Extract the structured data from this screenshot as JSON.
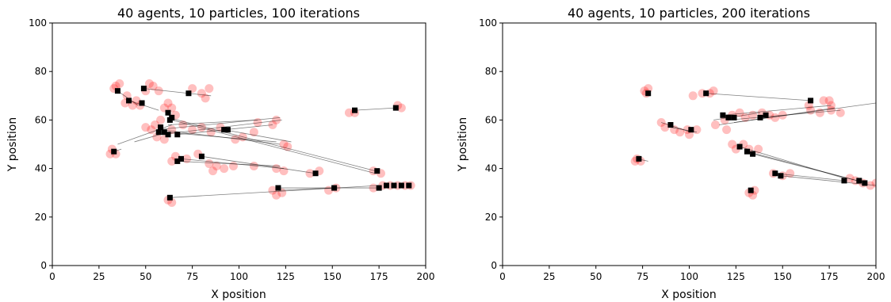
{
  "chart_data": [
    {
      "type": "scatter",
      "title": "40 agents, 10 particles, 100 iterations",
      "xlabel": "X position",
      "ylabel": "Y position",
      "xlim": [
        0,
        200
      ],
      "ylim": [
        0,
        100
      ],
      "xticks": [
        "0",
        "25",
        "50",
        "75",
        "100",
        "125",
        "150",
        "175",
        "200"
      ],
      "yticks": [
        "0",
        "20",
        "40",
        "60",
        "80",
        "100"
      ],
      "grid": false,
      "series": [
        {
          "marker": "square",
          "color": "#000000",
          "points": [
            [
              35,
              72
            ],
            [
              41,
              68
            ],
            [
              48,
              67
            ],
            [
              49,
              73
            ],
            [
              62,
              63
            ],
            [
              64,
              61
            ],
            [
              63,
              60
            ],
            [
              58,
              57
            ],
            [
              57,
              55
            ],
            [
              60,
              55
            ],
            [
              62,
              54
            ],
            [
              67,
              54
            ],
            [
              73,
              71
            ],
            [
              92,
              56
            ],
            [
              94,
              56
            ],
            [
              33,
              47
            ],
            [
              69,
              44
            ],
            [
              67,
              43
            ],
            [
              80,
              45
            ],
            [
              141,
              38
            ],
            [
              174,
              39
            ],
            [
              121,
              32
            ],
            [
              151,
              32
            ],
            [
              175,
              32
            ],
            [
              179,
              33
            ],
            [
              183,
              33
            ],
            [
              187,
              33
            ],
            [
              191,
              33
            ],
            [
              162,
              64
            ],
            [
              184,
              65
            ],
            [
              63,
              28
            ]
          ]
        },
        {
          "marker": "circle",
          "color": "#ff0000",
          "alpha": 0.25,
          "points": [
            [
              34,
              74
            ],
            [
              36,
              75
            ],
            [
              33,
              73
            ],
            [
              40,
              70
            ],
            [
              43,
              66
            ],
            [
              45,
              68
            ],
            [
              39,
              67
            ],
            [
              47,
              66
            ],
            [
              50,
              72
            ],
            [
              52,
              75
            ],
            [
              54,
              74
            ],
            [
              57,
              72
            ],
            [
              60,
              65
            ],
            [
              62,
              67
            ],
            [
              64,
              65
            ],
            [
              66,
              62
            ],
            [
              58,
              60
            ],
            [
              55,
              58
            ],
            [
              53,
              56
            ],
            [
              50,
              57
            ],
            [
              56,
              53
            ],
            [
              60,
              52
            ],
            [
              64,
              56
            ],
            [
              70,
              58
            ],
            [
              75,
              56
            ],
            [
              80,
              57
            ],
            [
              85,
              55
            ],
            [
              90,
              57
            ],
            [
              75,
              73
            ],
            [
              80,
              71
            ],
            [
              84,
              73
            ],
            [
              82,
              69
            ],
            [
              32,
              48
            ],
            [
              34,
              46
            ],
            [
              31,
              46
            ],
            [
              66,
              45
            ],
            [
              72,
              44
            ],
            [
              64,
              43
            ],
            [
              78,
              46
            ],
            [
              84,
              42
            ],
            [
              88,
              41
            ],
            [
              92,
              40
            ],
            [
              86,
              39
            ],
            [
              97,
              41
            ],
            [
              108,
              41
            ],
            [
              120,
              40
            ],
            [
              124,
              39
            ],
            [
              138,
              38
            ],
            [
              143,
              39
            ],
            [
              172,
              39
            ],
            [
              176,
              38
            ],
            [
              118,
              31
            ],
            [
              120,
              29
            ],
            [
              123,
              30
            ],
            [
              148,
              31
            ],
            [
              152,
              32
            ],
            [
              172,
              32
            ],
            [
              177,
              33
            ],
            [
              181,
              33
            ],
            [
              185,
              33
            ],
            [
              189,
              33
            ],
            [
              192,
              33
            ],
            [
              159,
              63
            ],
            [
              162,
              63
            ],
            [
              185,
              66
            ],
            [
              187,
              65
            ],
            [
              62,
              27
            ],
            [
              64,
              26
            ],
            [
              120,
              60
            ],
            [
              118,
              58
            ],
            [
              124,
              50
            ],
            [
              126,
              49
            ],
            [
              110,
              59
            ],
            [
              108,
              55
            ],
            [
              102,
              53
            ],
            [
              98,
              52
            ]
          ]
        },
        {
          "type": "line",
          "color": "#000000",
          "alpha": 0.5,
          "segments": [
            [
              [
                62,
                61
              ],
              [
                173,
                39
              ]
            ],
            [
              [
                64,
                60
              ],
              [
                173,
                38
              ]
            ],
            [
              [
                58,
                56
              ],
              [
                122,
                50
              ]
            ],
            [
              [
                60,
                55
              ],
              [
                120,
                51
              ]
            ],
            [
              [
                62,
                58
              ],
              [
                110,
                60
              ]
            ],
            [
              [
                56,
                56
              ],
              [
                122,
                61
              ]
            ],
            [
              [
                58,
                54
              ],
              [
                123,
                60
              ]
            ],
            [
              [
                67,
                54
              ],
              [
                118,
                58
              ]
            ],
            [
              [
                69,
                44
              ],
              [
                124,
                40
              ]
            ],
            [
              [
                67,
                43
              ],
              [
                122,
                41
              ]
            ],
            [
              [
                80,
                45
              ],
              [
                141,
                38
              ]
            ],
            [
              [
                121,
                32
              ],
              [
                175,
                32
              ]
            ],
            [
              [
                63,
                28
              ],
              [
                175,
                33
              ]
            ],
            [
              [
                162,
                64
              ],
              [
                184,
                65
              ]
            ],
            [
              [
                49,
                73
              ],
              [
                73,
                71
              ]
            ],
            [
              [
                73,
                71
              ],
              [
                85,
                70
              ]
            ],
            [
              [
                35,
                72
              ],
              [
                46,
                66
              ]
            ],
            [
              [
                41,
                68
              ],
              [
                57,
                64
              ]
            ],
            [
              [
                44,
                51
              ],
              [
                62,
                55
              ]
            ],
            [
              [
                92,
                56
              ],
              [
                128,
                51
              ]
            ],
            [
              [
                122,
                31
              ],
              [
                151,
                32
              ]
            ],
            [
              [
                33,
                47
              ],
              [
                37,
                48
              ]
            ],
            [
              [
                35,
                50
              ],
              [
                64,
                58
              ]
            ]
          ]
        }
      ]
    },
    {
      "type": "scatter",
      "title": "40 agents, 10 particles, 200 iterations",
      "xlabel": "X position",
      "ylabel": "Y position",
      "xlim": [
        0,
        200
      ],
      "ylim": [
        0,
        100
      ],
      "xticks": [
        "0",
        "25",
        "50",
        "75",
        "100",
        "125",
        "150",
        "175",
        "200"
      ],
      "yticks": [
        "0",
        "20",
        "40",
        "60",
        "80",
        "100"
      ],
      "grid": false,
      "series": [
        {
          "marker": "square",
          "color": "#000000",
          "points": [
            [
              78,
              71
            ],
            [
              109,
              71
            ],
            [
              165,
              68
            ],
            [
              118,
              62
            ],
            [
              121,
              61
            ],
            [
              124,
              61
            ],
            [
              138,
              61
            ],
            [
              141,
              62
            ],
            [
              90,
              58
            ],
            [
              101,
              56
            ],
            [
              127,
              49
            ],
            [
              131,
              47
            ],
            [
              134,
              46
            ],
            [
              146,
              38
            ],
            [
              149,
              37
            ],
            [
              183,
              35
            ],
            [
              191,
              35
            ],
            [
              194,
              34
            ],
            [
              73,
              44
            ],
            [
              133,
              31
            ]
          ]
        },
        {
          "marker": "circle",
          "color": "#ff0000",
          "alpha": 0.25,
          "points": [
            [
              76,
              72
            ],
            [
              78,
              73
            ],
            [
              77,
              71
            ],
            [
              102,
              70
            ],
            [
              107,
              71
            ],
            [
              111,
              71
            ],
            [
              113,
              72
            ],
            [
              172,
              68
            ],
            [
              175,
              68
            ],
            [
              176,
              66
            ],
            [
              164,
              66
            ],
            [
              119,
              60
            ],
            [
              123,
              62
            ],
            [
              127,
              63
            ],
            [
              130,
              61
            ],
            [
              134,
              62
            ],
            [
              139,
              63
            ],
            [
              143,
              62
            ],
            [
              146,
              61
            ],
            [
              150,
              62
            ],
            [
              165,
              64
            ],
            [
              170,
              63
            ],
            [
              176,
              64
            ],
            [
              181,
              63
            ],
            [
              85,
              59
            ],
            [
              87,
              57
            ],
            [
              92,
              56
            ],
            [
              95,
              55
            ],
            [
              99,
              56
            ],
            [
              100,
              54
            ],
            [
              104,
              56
            ],
            [
              123,
              50
            ],
            [
              125,
              48
            ],
            [
              129,
              50
            ],
            [
              132,
              48
            ],
            [
              137,
              48
            ],
            [
              120,
              56
            ],
            [
              114,
              58
            ],
            [
              145,
              38
            ],
            [
              150,
              37
            ],
            [
              154,
              38
            ],
            [
              186,
              36
            ],
            [
              189,
              35
            ],
            [
              193,
              34
            ],
            [
              197,
              33
            ],
            [
              200,
              34
            ],
            [
              72,
              44
            ],
            [
              74,
              43
            ],
            [
              71,
              43
            ],
            [
              132,
              30
            ],
            [
              135,
              31
            ],
            [
              134,
              29
            ]
          ]
        },
        {
          "type": "line",
          "color": "#000000",
          "alpha": 0.5,
          "segments": [
            [
              [
                109,
                71
              ],
              [
                165,
                68
              ]
            ],
            [
              [
                118,
                62
              ],
              [
                176,
                66
              ]
            ],
            [
              [
                121,
                60
              ],
              [
                181,
                64
              ]
            ],
            [
              [
                116,
                58
              ],
              [
                178,
                65
              ]
            ],
            [
              [
                124,
                59
              ],
              [
                200,
                67
              ]
            ],
            [
              [
                127,
                49
              ],
              [
                183,
                36
              ]
            ],
            [
              [
                131,
                47
              ],
              [
                190,
                35
              ]
            ],
            [
              [
                134,
                46
              ],
              [
                195,
                34
              ]
            ],
            [
              [
                146,
                38
              ],
              [
                183,
                35
              ]
            ],
            [
              [
                149,
                37
              ],
              [
                200,
                33
              ]
            ],
            [
              [
                85,
                59
              ],
              [
                101,
                55
              ]
            ],
            [
              [
                90,
                57
              ],
              [
                104,
                55
              ]
            ],
            [
              [
                72,
                44
              ],
              [
                78,
                43
              ]
            ],
            [
              [
                113,
                60
              ],
              [
                138,
                63
              ]
            ]
          ]
        }
      ]
    }
  ]
}
